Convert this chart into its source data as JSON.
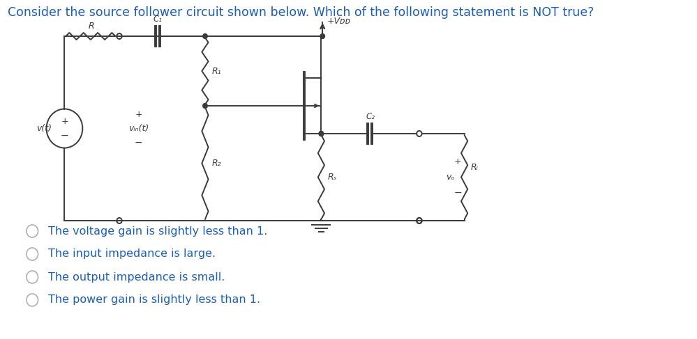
{
  "title": "Consider the source follower circuit shown below. Which of the following statement is NOT true?",
  "title_color": "#1a5eb8",
  "title_fontsize": 12.5,
  "bg_color": "#ffffff",
  "circuit_color": "#3a3a3a",
  "options": [
    "The voltage gain is slightly less than 1.",
    "The input impedance is large.",
    "The output impedance is small.",
    "The power gain is slightly less than 1."
  ],
  "options_color": "#1a5eb8",
  "options_fontsize": 11.5
}
